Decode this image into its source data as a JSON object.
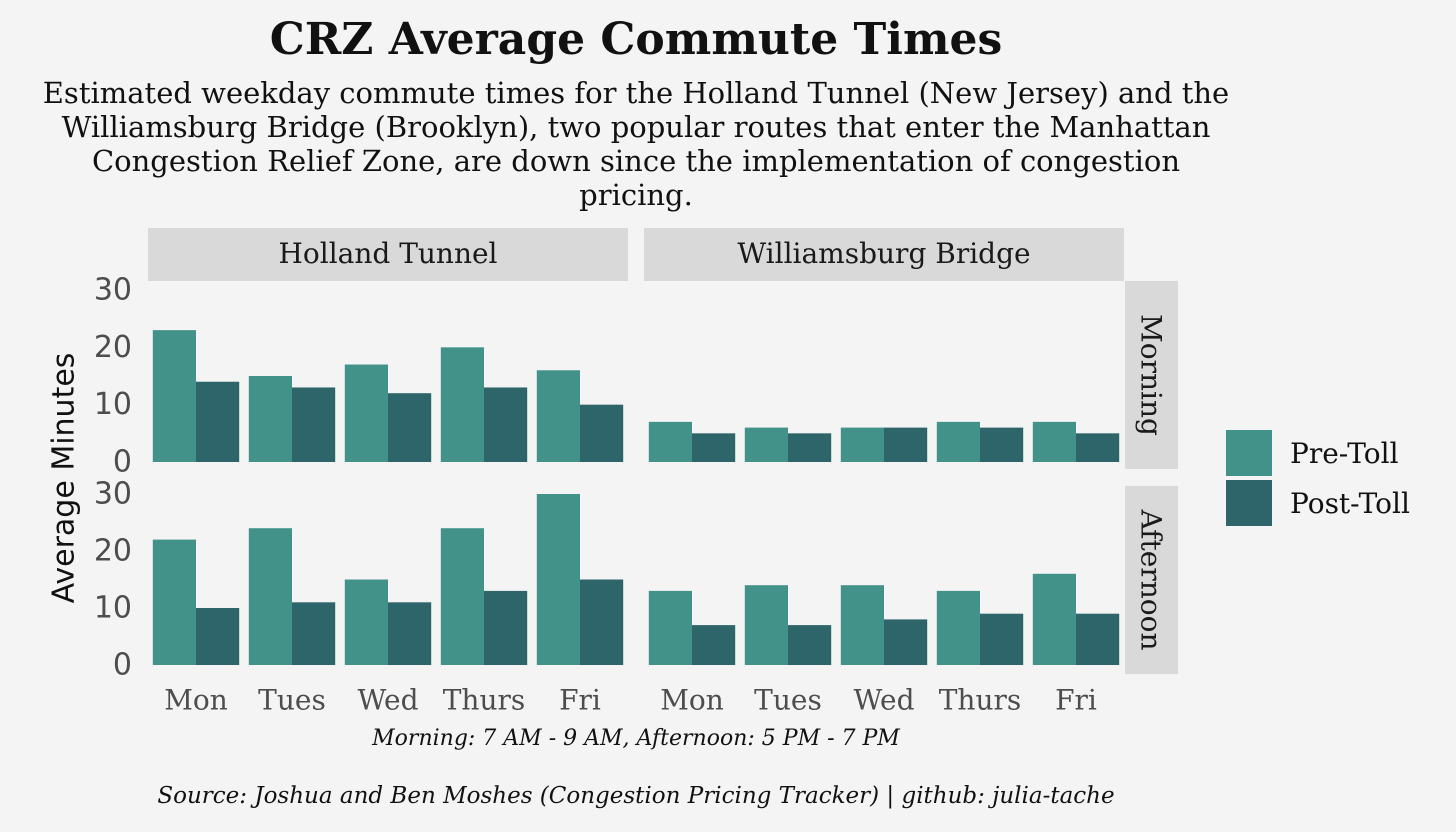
{
  "title": "CRZ Average Commute Times",
  "subtitle": "Estimated weekday commute times for the Holland Tunnel (New Jersey) and the Williamsburg Bridge (Brooklyn), two popular routes that enter the Manhattan Congestion Relief Zone, are down since the implementation of congestion pricing.",
  "caption": "Morning: 7 AM - 9 AM, Afternoon: 5 PM - 7 PM",
  "source": "Source: Joshua and Ben Moshes (Congestion Pricing Tracker) | github: julia-tache",
  "colors": {
    "pre": "#43928a",
    "post": "#2e656b",
    "strip": "#d9d9d9",
    "background": "#f4f4f4"
  },
  "chart_data": {
    "type": "bar",
    "ylabel": "Average Minutes",
    "ylim": [
      0,
      30
    ],
    "yticks": [
      0,
      10,
      20,
      30
    ],
    "categories": [
      "Mon",
      "Tues",
      "Wed",
      "Thurs",
      "Fri"
    ],
    "series_names": [
      "Pre-Toll",
      "Post-Toll"
    ],
    "columns": [
      "Holland Tunnel",
      "Williamsburg Bridge"
    ],
    "rows": [
      "Morning",
      "Afternoon"
    ],
    "panels": [
      {
        "column": "Holland Tunnel",
        "row": "Morning",
        "series": [
          {
            "name": "Pre-Toll",
            "values": [
              23,
              15,
              17,
              20,
              16
            ]
          },
          {
            "name": "Post-Toll",
            "values": [
              14,
              13,
              12,
              13,
              10
            ]
          }
        ]
      },
      {
        "column": "Williamsburg Bridge",
        "row": "Morning",
        "series": [
          {
            "name": "Pre-Toll",
            "values": [
              7,
              6,
              6,
              7,
              7
            ]
          },
          {
            "name": "Post-Toll",
            "values": [
              5,
              5,
              6,
              6,
              5
            ]
          }
        ]
      },
      {
        "column": "Holland Tunnel",
        "row": "Afternoon",
        "series": [
          {
            "name": "Pre-Toll",
            "values": [
              22,
              24,
              15,
              24,
              30
            ]
          },
          {
            "name": "Post-Toll",
            "values": [
              10,
              11,
              11,
              13,
              15
            ]
          }
        ]
      },
      {
        "column": "Williamsburg Bridge",
        "row": "Afternoon",
        "series": [
          {
            "name": "Pre-Toll",
            "values": [
              13,
              14,
              14,
              13,
              16
            ]
          },
          {
            "name": "Post-Toll",
            "values": [
              7,
              7,
              8,
              9,
              9
            ]
          }
        ]
      }
    ]
  }
}
